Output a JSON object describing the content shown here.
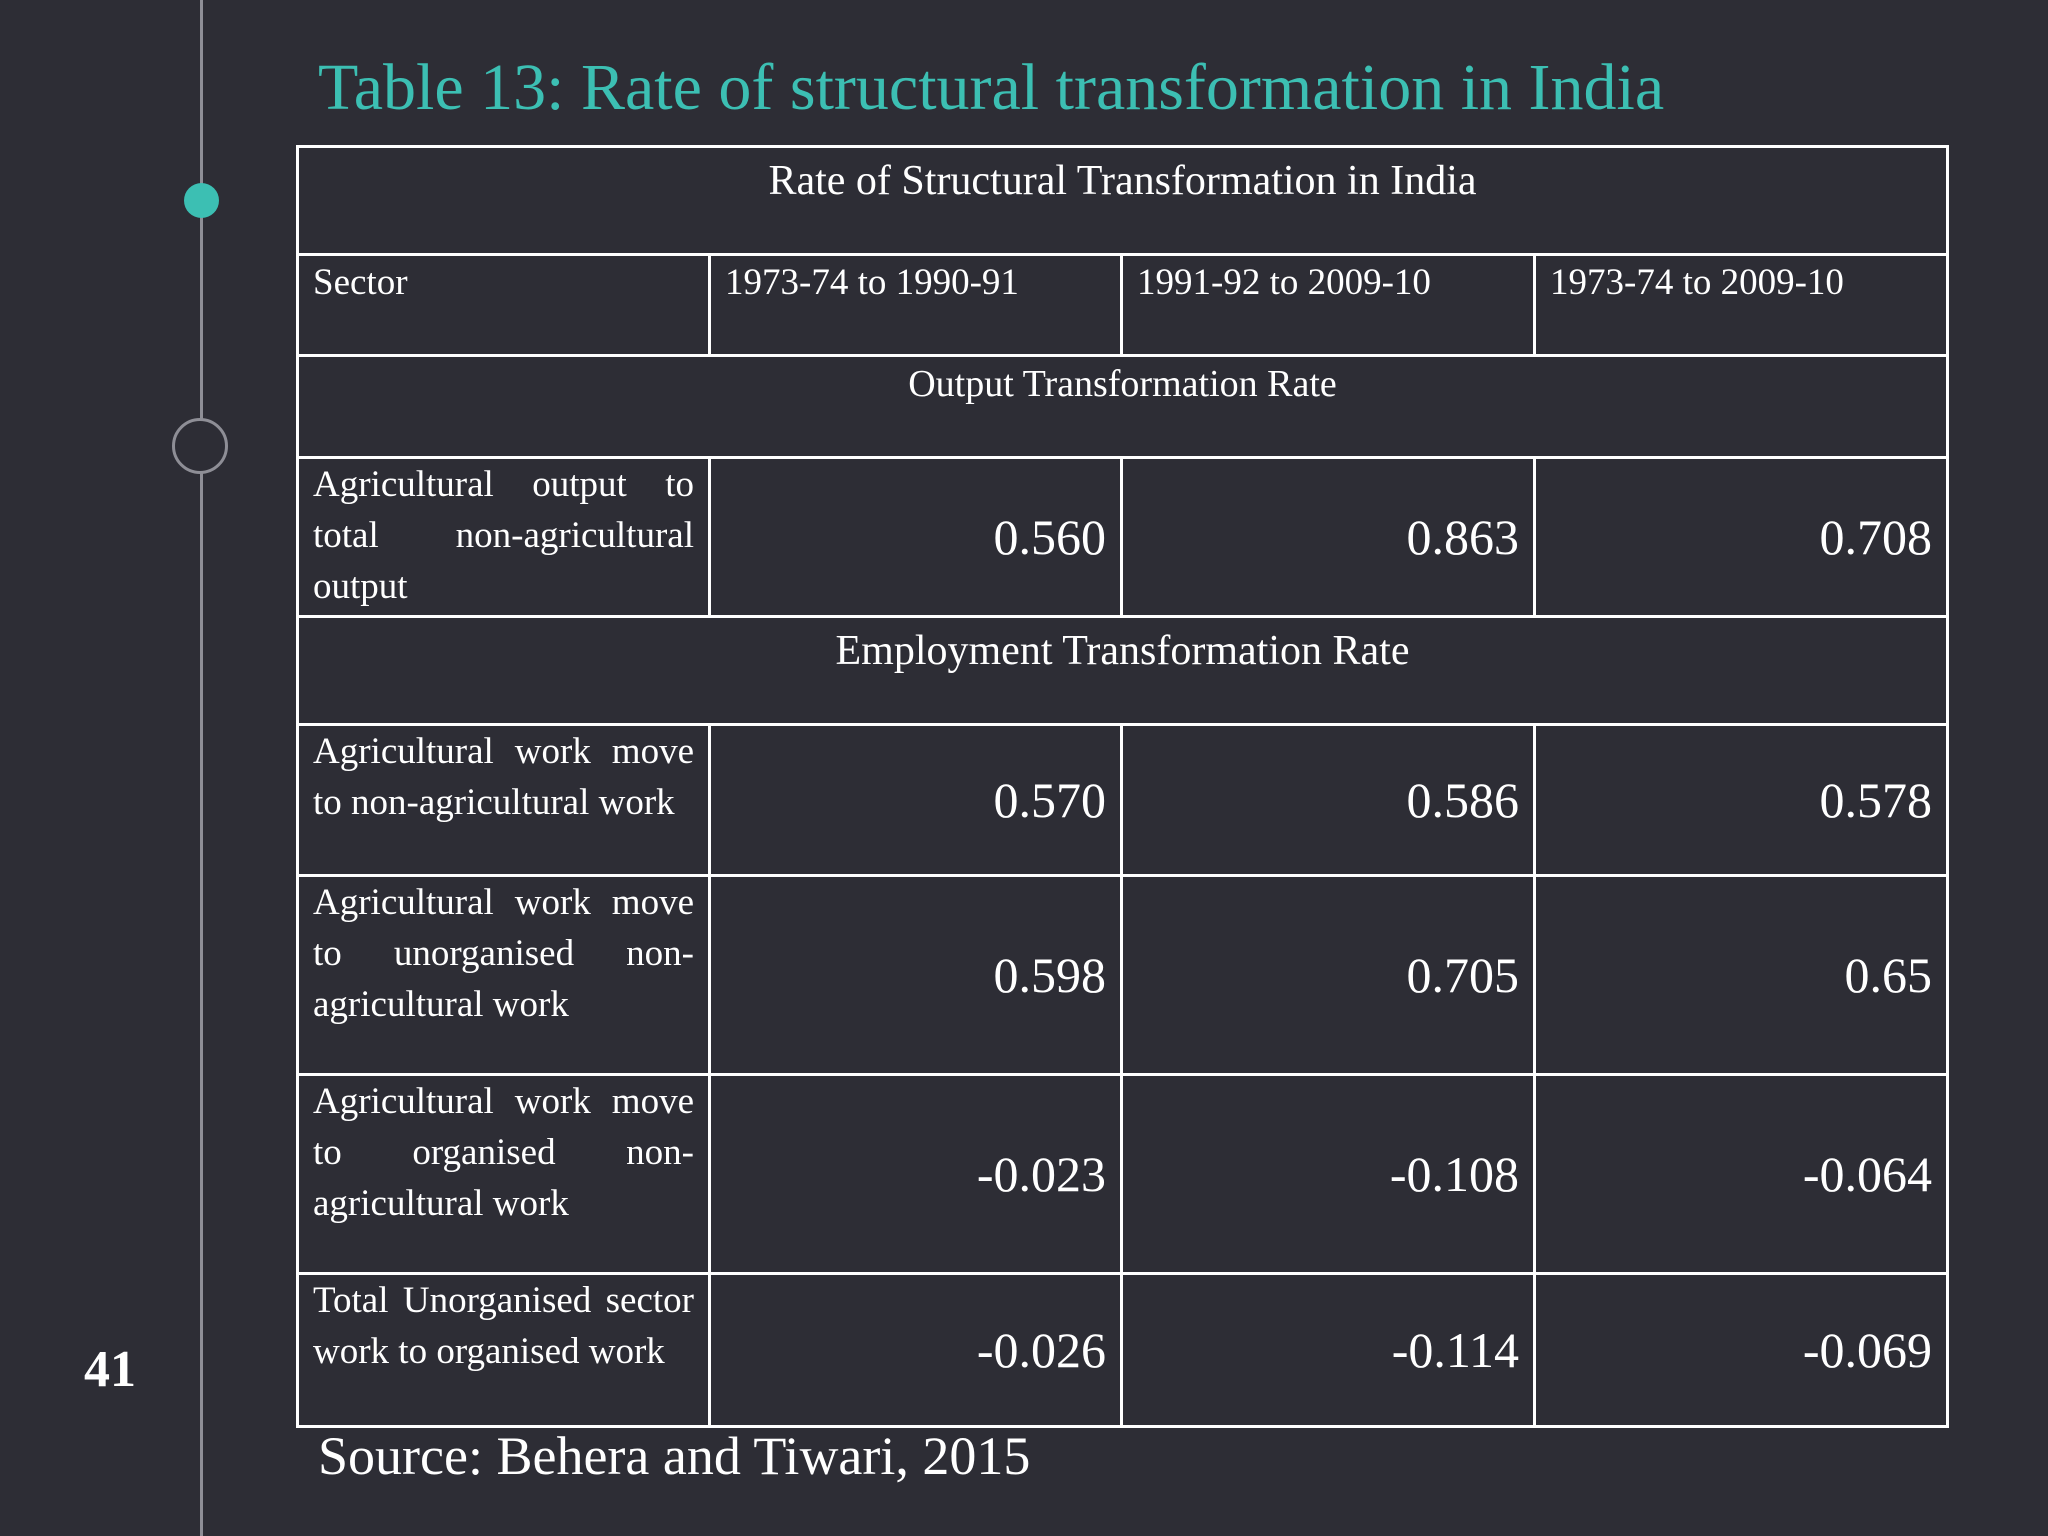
{
  "slide": {
    "title": "Table 13: Rate of structural transformation in India",
    "page_number": "41",
    "source": "Source: Behera and Tiwari, 2015",
    "accent_color": "#3cbfb3",
    "background_color": "#2d2d35"
  },
  "table": {
    "caption": "Rate of Structural Transformation in India",
    "headers": [
      "Sector",
      "1973-74 to 1990-91",
      "1991-92 to 2009-10",
      "1973-74 to 2009-10"
    ],
    "sections": [
      {
        "label": "Output Transformation Rate",
        "rows": [
          {
            "sector": "Agricultural output to total non-agricultural output",
            "values": [
              "0.560",
              "0.863",
              "0.708"
            ]
          }
        ]
      },
      {
        "label": "Employment Transformation Rate",
        "rows": [
          {
            "sector": "Agricultural work move to non-agricultural work",
            "values": [
              "0.570",
              "0.586",
              "0.578"
            ]
          },
          {
            "sector": "Agricultural work move to unorganised non-agricultural work",
            "values": [
              "0.598",
              "0.705",
              "0.65"
            ]
          },
          {
            "sector": "Agricultural work move to organised non-agricultural work",
            "values": [
              "-0.023",
              "-0.108",
              "-0.064"
            ]
          },
          {
            "sector": "Total Unorganised sector work to organised work",
            "values": [
              "-0.026",
              "-0.114",
              "-0.069"
            ]
          }
        ]
      }
    ]
  }
}
